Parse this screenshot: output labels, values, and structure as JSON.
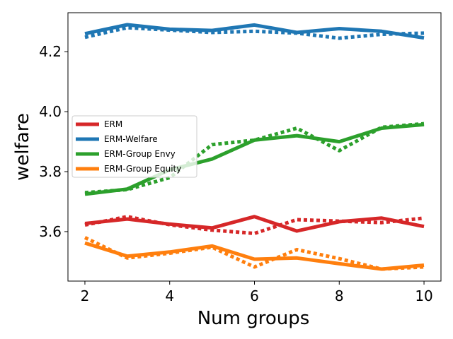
{
  "chart_data": {
    "type": "line",
    "xlabel": "Num groups",
    "ylabel": "welfare",
    "xlim": [
      1.6,
      10.4
    ],
    "ylim": [
      3.435,
      4.33
    ],
    "xticks": [
      2,
      4,
      6,
      8,
      10
    ],
    "yticks": [
      3.6,
      3.8,
      4.0,
      4.2
    ],
    "xtick_labels": [
      "2",
      "4",
      "6",
      "8",
      "10"
    ],
    "ytick_labels": [
      "3.6",
      "3.8",
      "4.0",
      "4.2"
    ],
    "grid": false,
    "legend_position": "center-left",
    "x": [
      2,
      3,
      4,
      5,
      6,
      7,
      8,
      9,
      10
    ],
    "series": [
      {
        "name": "ERM",
        "color": "#d62728",
        "solid": [
          3.627,
          3.642,
          3.625,
          3.612,
          3.65,
          3.602,
          3.633,
          3.645,
          3.617
        ],
        "dotted": [
          3.622,
          3.65,
          3.623,
          3.605,
          3.594,
          3.64,
          3.635,
          3.63,
          3.645
        ]
      },
      {
        "name": "ERM-Welfare",
        "color": "#1f77b4",
        "solid": [
          4.26,
          4.29,
          4.275,
          4.271,
          4.289,
          4.264,
          4.277,
          4.268,
          4.246
        ],
        "dotted": [
          4.248,
          4.28,
          4.272,
          4.264,
          4.268,
          4.262,
          4.245,
          4.258,
          4.262
        ]
      },
      {
        "name": "ERM-Group Envy",
        "color": "#2ca02c",
        "solid": [
          3.725,
          3.742,
          3.806,
          3.842,
          3.905,
          3.92,
          3.9,
          3.945,
          3.957
        ],
        "dotted": [
          3.73,
          3.74,
          3.78,
          3.89,
          3.905,
          3.945,
          3.87,
          3.948,
          3.96
        ]
      },
      {
        "name": "ERM-Group Equity",
        "color": "#ff7f0e",
        "solid": [
          3.562,
          3.518,
          3.532,
          3.552,
          3.508,
          3.512,
          3.493,
          3.475,
          3.488
        ],
        "dotted": [
          3.58,
          3.512,
          3.528,
          3.548,
          3.482,
          3.54,
          3.51,
          3.475,
          3.482
        ]
      }
    ]
  }
}
